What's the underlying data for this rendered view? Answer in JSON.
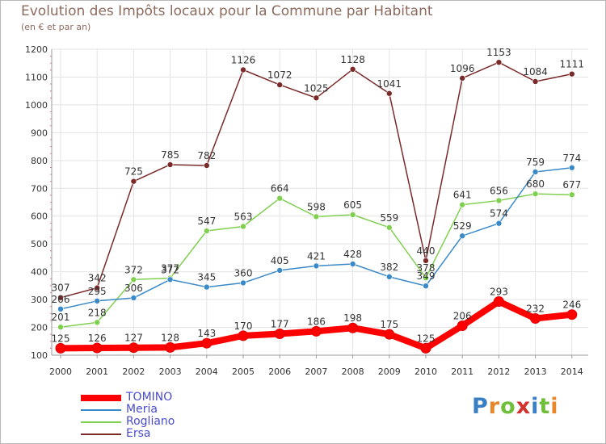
{
  "title": "Evolution des Impôts locaux pour la Commune par Habitant",
  "subtitle": "(en € et par an)",
  "logo": {
    "text": "Proxiti",
    "letter_colors": [
      "#3a7fc4",
      "#e8862a",
      "#6fbf3a",
      "#d4322c",
      "#3a7fc4",
      "#6fbf3a",
      "#e8862a"
    ]
  },
  "legend_text_color": "#4a4ad0",
  "chart_data": {
    "type": "line",
    "x": [
      "2000",
      "2001",
      "2002",
      "2003",
      "2004",
      "2005",
      "2006",
      "2007",
      "2008",
      "2009",
      "2010",
      "2011",
      "2012",
      "2013",
      "2014"
    ],
    "ylim": [
      100,
      1200
    ],
    "yticks": [
      100,
      200,
      300,
      400,
      500,
      600,
      700,
      800,
      900,
      1000,
      1100,
      1200
    ],
    "grid": true,
    "legend_position": "bottom-left",
    "series": [
      {
        "name": "TOMINO",
        "color": "#ff0000",
        "values": [
          125,
          126,
          127,
          128,
          143,
          170,
          177,
          186,
          198,
          175,
          125,
          206,
          293,
          232,
          246
        ]
      },
      {
        "name": "Meria",
        "color": "#3a89c9",
        "values": [
          266,
          295,
          306,
          372,
          345,
          360,
          405,
          421,
          428,
          382,
          349,
          529,
          574,
          759,
          774
        ]
      },
      {
        "name": "Rogliano",
        "color": "#80d050",
        "values": [
          201,
          218,
          372,
          377,
          547,
          563,
          664,
          598,
          605,
          559,
          378,
          641,
          656,
          680,
          677
        ]
      },
      {
        "name": "Ersa",
        "color": "#7b2a2a",
        "values": [
          307,
          342,
          725,
          785,
          782,
          1126,
          1072,
          1025,
          1128,
          1041,
          440,
          1096,
          1153,
          1084,
          1111
        ]
      }
    ]
  }
}
